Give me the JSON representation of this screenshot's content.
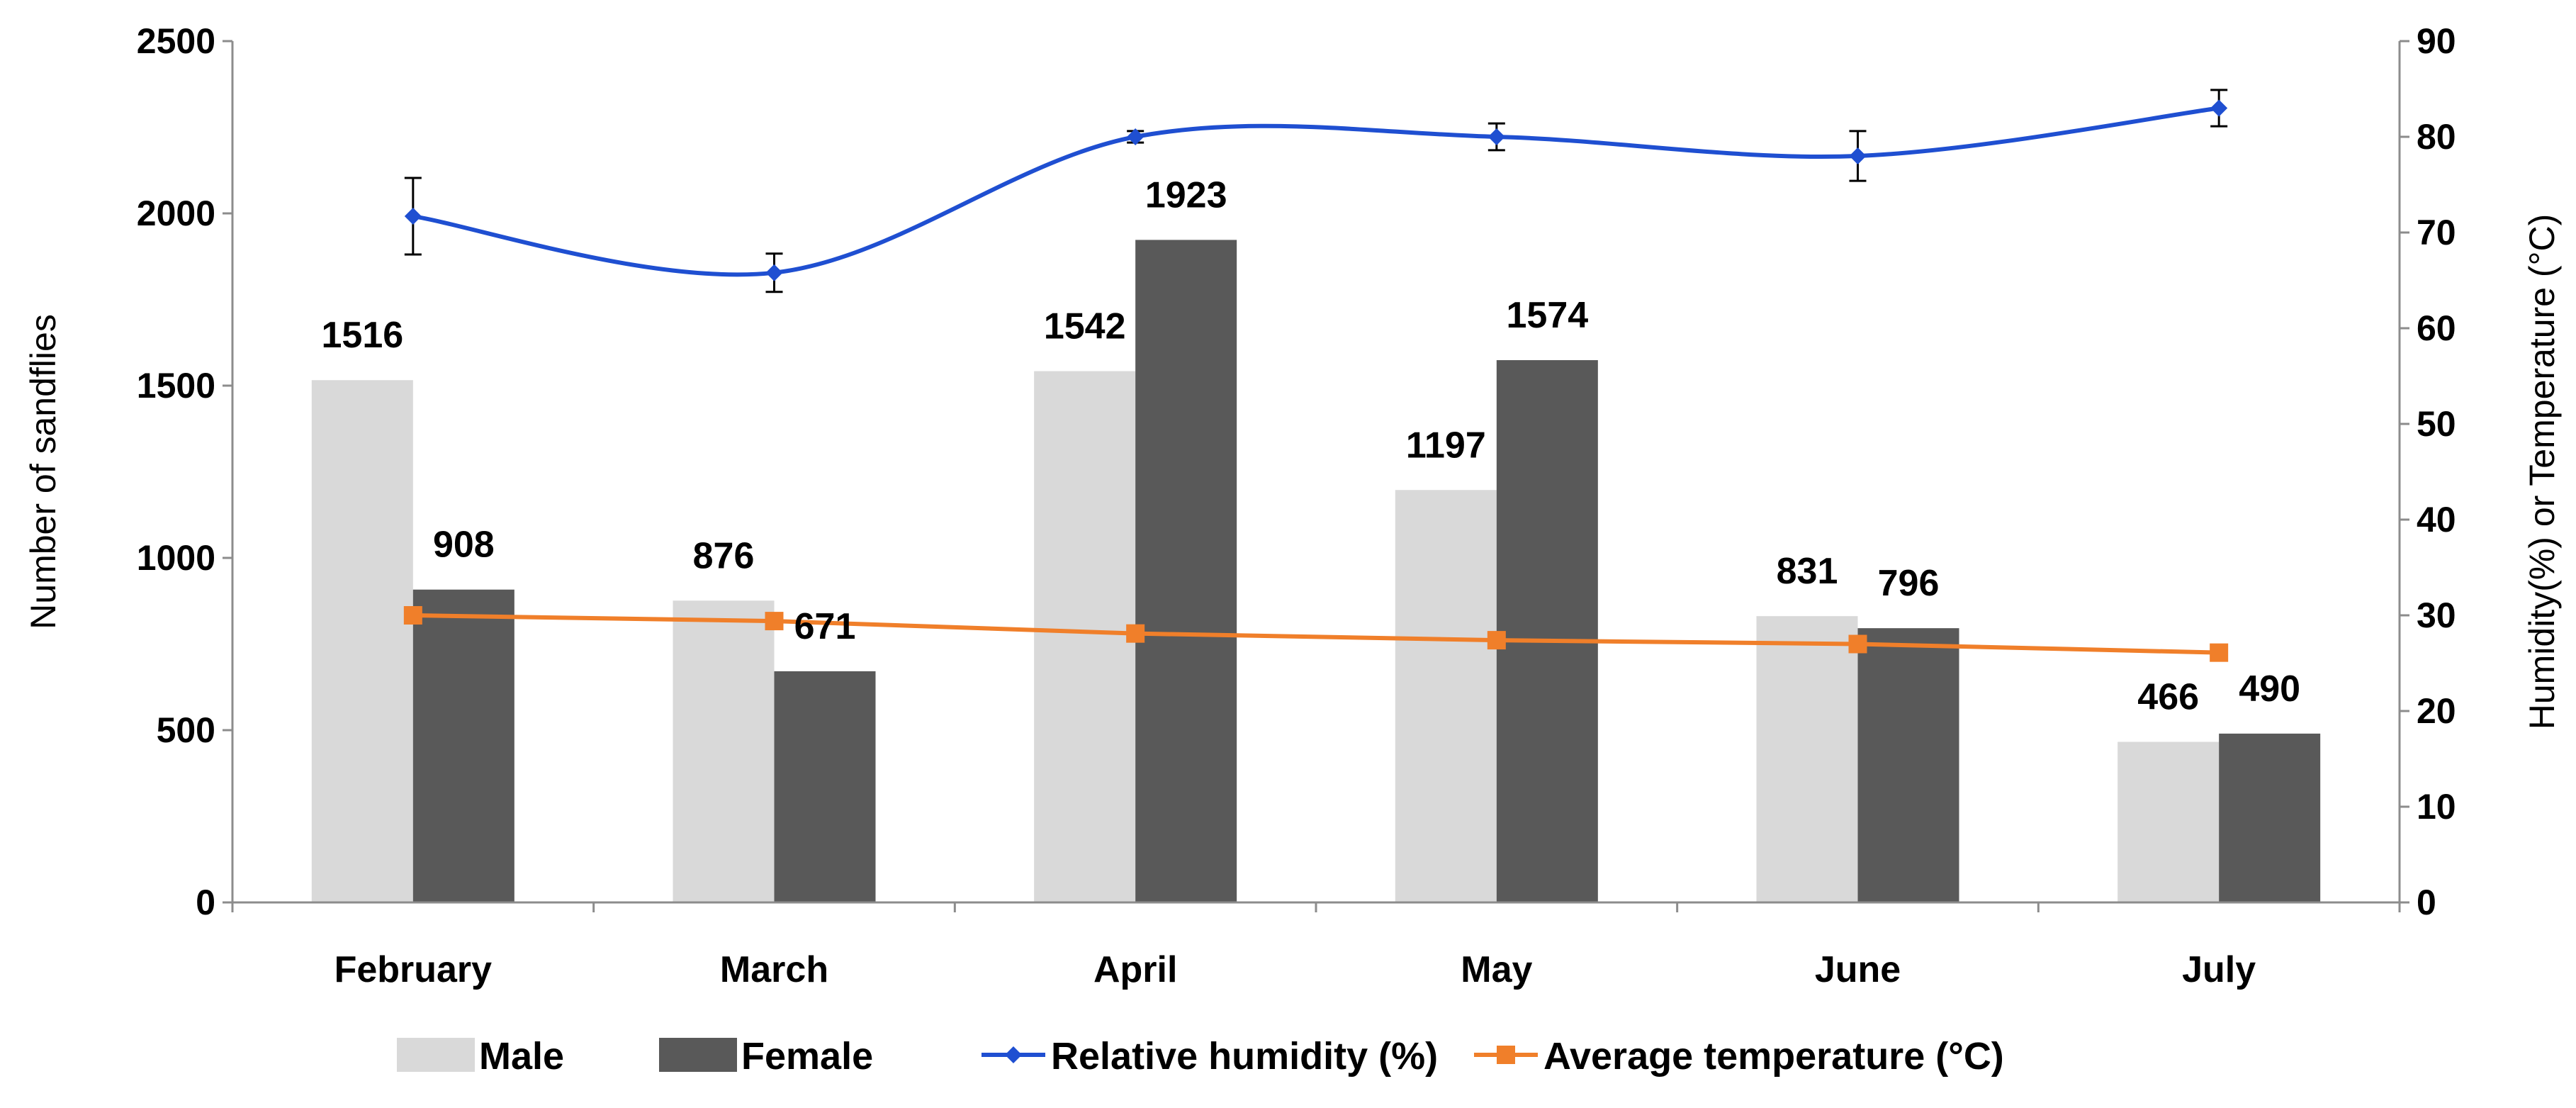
{
  "chart_data": {
    "type": "bar",
    "categories": [
      "February",
      "March",
      "April",
      "May",
      "June",
      "July"
    ],
    "series": [
      {
        "name": "Male",
        "kind": "bar",
        "axis": "left",
        "color": "#d9d9d9",
        "values": [
          1516,
          876,
          1542,
          1197,
          831,
          466
        ]
      },
      {
        "name": "Female",
        "kind": "bar",
        "axis": "left",
        "color": "#595959",
        "values": [
          908,
          671,
          1923,
          1574,
          796,
          490
        ]
      },
      {
        "name": "Relative humidity (%)",
        "kind": "line",
        "axis": "right",
        "color": "#1f4fd1",
        "marker": "diamond",
        "smooth": true,
        "values": [
          71.7,
          65.8,
          80,
          80,
          78,
          83
        ],
        "error": [
          4,
          2,
          0.6,
          1.4,
          2.6,
          1.9
        ]
      },
      {
        "name": "Average temperature (°C)",
        "kind": "line",
        "axis": "right",
        "color": "#f07f2a",
        "marker": "square",
        "smooth": false,
        "values": [
          30,
          29.4,
          28.1,
          27.4,
          27,
          26.1
        ]
      }
    ],
    "ylabel": "Number of sandflies",
    "y2label": "Humidity(%) or Temperature (°C)",
    "xlabel": "",
    "ylim": [
      0,
      2500
    ],
    "y2lim": [
      0,
      90
    ],
    "yticks": [
      "0",
      "500",
      "1000",
      "1500",
      "2000",
      "2500"
    ],
    "y2ticks": [
      "0",
      "10",
      "20",
      "30",
      "40",
      "50",
      "60",
      "70",
      "80",
      "90"
    ],
    "grid": false,
    "legend": "bottom",
    "legend_labels": [
      "Male",
      "Female",
      "Relative humidity (%)",
      "Average temperature (°C)"
    ]
  }
}
